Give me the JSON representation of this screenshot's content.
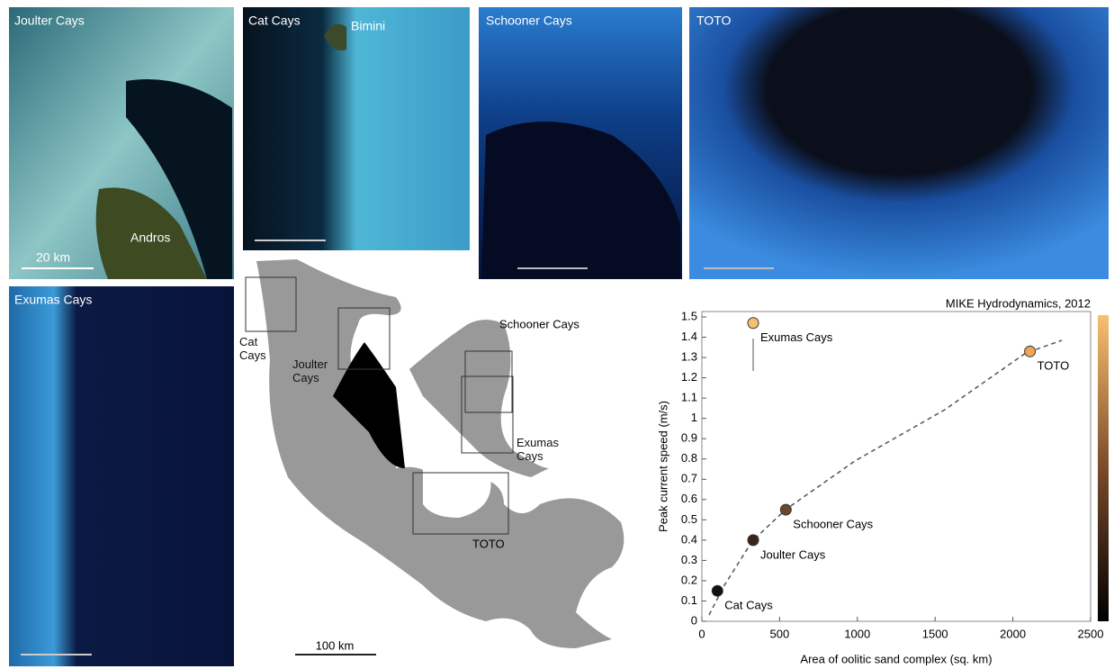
{
  "panels": [
    {
      "title": "Joulter Cays",
      "annotation": "Andros",
      "scale": "20 km"
    },
    {
      "title": "Cat Cays",
      "annotation": "Bimini"
    },
    {
      "title": "Schooner Cays"
    },
    {
      "title": "TOTO"
    },
    {
      "title": "Exumas Cays"
    }
  ],
  "map": {
    "labels": [
      "Cat Cays",
      "Joulter Cays",
      "Schooner Cays",
      "Exumas Cays",
      "TOTO"
    ],
    "scale": "100 km"
  },
  "chart_data": {
    "type": "scatter",
    "title": "MIKE Hydrodynamics, 2012",
    "x_label": "Area of oolitic sand complex (sq. km)",
    "y_label": "Peak current speed (m/s)",
    "series": [
      {
        "name": "Cat Cays",
        "color": "#111111",
        "x": [
          100
        ],
        "values": [
          0.15
        ]
      },
      {
        "name": "Joulter Cays",
        "color": "#3a2418",
        "x": [
          330
        ],
        "values": [
          0.4
        ]
      },
      {
        "name": "Schooner Cays",
        "color": "#6e4630",
        "x": [
          540
        ],
        "values": [
          0.55
        ]
      },
      {
        "name": "TOTO",
        "color": "#f0a35a",
        "x": [
          2110
        ],
        "values": [
          1.33
        ]
      },
      {
        "name": "Exumas Cays",
        "color": "#f7c070",
        "x": [
          330
        ],
        "values": [
          1.47
        ]
      }
    ],
    "xlim": [
      0,
      2500
    ],
    "xticks": [
      0,
      500,
      1000,
      1500,
      2000,
      2500
    ],
    "ylim": [
      0,
      1.5
    ],
    "yticks": [
      0,
      0.1,
      0.2,
      0.3,
      0.4,
      0.5,
      0.6,
      0.7,
      0.8,
      0.9,
      1,
      1.1,
      1.2,
      1.3,
      1.4,
      1.5
    ]
  }
}
